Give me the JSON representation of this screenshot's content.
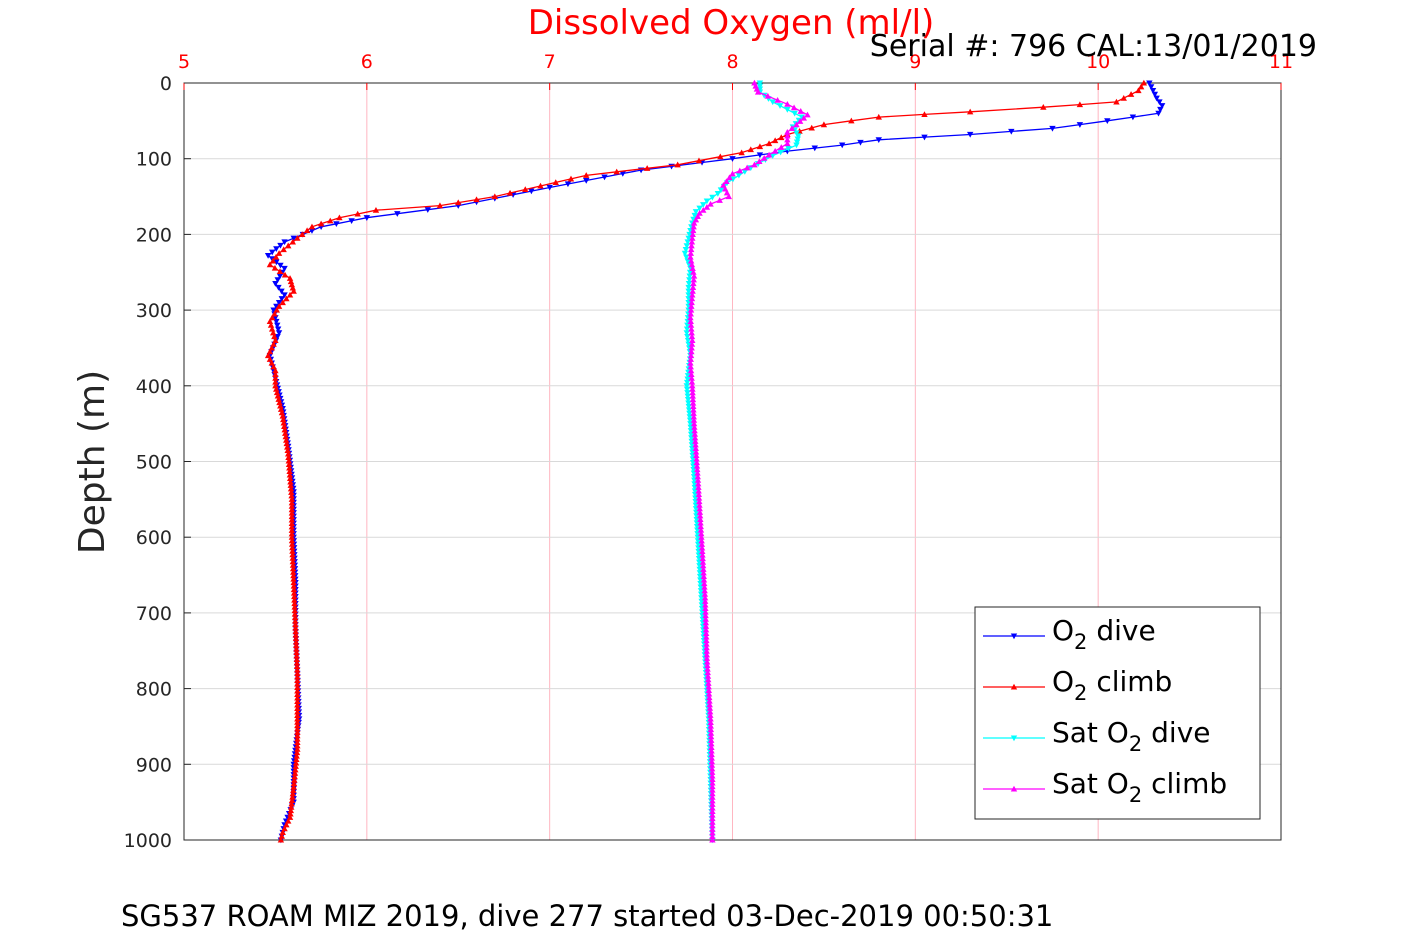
{
  "chart_data": {
    "type": "line",
    "title": "Dissolved Oxygen (ml/l)",
    "title_color": "#ff0000",
    "serial_label": "Serial #: 796  CAL:13/01/2019",
    "caption": "SG537 ROAM MIZ 2019, dive 277 started 03-Dec-2019 00:50:31",
    "ylabel": "Depth (m)",
    "xlim": [
      5,
      11
    ],
    "ylim": [
      0,
      1000
    ],
    "y_reversed": true,
    "x_axis_position": "top",
    "x_tick_color": "#ff0000",
    "x_grid_color": "#ffb6c1",
    "y_grid_color": "#d9d9d9",
    "grid": true,
    "legend_position": "bottom-right",
    "x_ticks": [
      5,
      6,
      7,
      8,
      9,
      10,
      11
    ],
    "y_ticks": [
      0,
      100,
      200,
      300,
      400,
      500,
      600,
      700,
      800,
      900,
      1000
    ],
    "series": [
      {
        "name": "O2 dive",
        "legend": {
          "pre": "O",
          "sub": "2",
          "post": " dive"
        },
        "color": "#0000ff",
        "marker": "triangle-down",
        "points": [
          [
            10.28,
            0
          ],
          [
            10.3,
            10
          ],
          [
            10.32,
            20
          ],
          [
            10.35,
            30
          ],
          [
            10.33,
            40
          ],
          [
            10.05,
            50
          ],
          [
            9.75,
            60
          ],
          [
            9.3,
            68
          ],
          [
            8.8,
            75
          ],
          [
            8.6,
            82
          ],
          [
            8.3,
            90
          ],
          [
            8.0,
            100
          ],
          [
            7.5,
            115
          ],
          [
            7.0,
            138
          ],
          [
            6.5,
            162
          ],
          [
            6.0,
            178
          ],
          [
            5.75,
            190
          ],
          [
            5.55,
            210
          ],
          [
            5.46,
            228
          ],
          [
            5.55,
            245
          ],
          [
            5.5,
            265
          ],
          [
            5.55,
            280
          ],
          [
            5.49,
            300
          ],
          [
            5.52,
            330
          ],
          [
            5.47,
            360
          ],
          [
            5.5,
            390
          ],
          [
            5.54,
            430
          ],
          [
            5.57,
            480
          ],
          [
            5.6,
            540
          ],
          [
            5.6,
            600
          ],
          [
            5.61,
            660
          ],
          [
            5.61,
            720
          ],
          [
            5.62,
            780
          ],
          [
            5.63,
            840
          ],
          [
            5.6,
            900
          ],
          [
            5.6,
            950
          ],
          [
            5.55,
            980
          ],
          [
            5.53,
            1000
          ]
        ]
      },
      {
        "name": "O2 climb",
        "legend": {
          "pre": "O",
          "sub": "2",
          "post": " climb"
        },
        "color": "#ff0000",
        "marker": "triangle-up",
        "points": [
          [
            10.25,
            0
          ],
          [
            10.22,
            10
          ],
          [
            10.1,
            25
          ],
          [
            9.7,
            32
          ],
          [
            9.3,
            38
          ],
          [
            8.8,
            45
          ],
          [
            8.5,
            55
          ],
          [
            8.3,
            68
          ],
          [
            8.2,
            80
          ],
          [
            8.05,
            92
          ],
          [
            7.7,
            108
          ],
          [
            7.2,
            122
          ],
          [
            6.7,
            150
          ],
          [
            6.4,
            162
          ],
          [
            6.05,
            168
          ],
          [
            5.85,
            178
          ],
          [
            5.7,
            190
          ],
          [
            5.62,
            205
          ],
          [
            5.52,
            225
          ],
          [
            5.47,
            240
          ],
          [
            5.58,
            258
          ],
          [
            5.6,
            275
          ],
          [
            5.52,
            295
          ],
          [
            5.47,
            315
          ],
          [
            5.5,
            340
          ],
          [
            5.46,
            360
          ],
          [
            5.5,
            380
          ],
          [
            5.5,
            400
          ],
          [
            5.54,
            440
          ],
          [
            5.57,
            490
          ],
          [
            5.59,
            550
          ],
          [
            5.59,
            600
          ],
          [
            5.6,
            660
          ],
          [
            5.61,
            720
          ],
          [
            5.62,
            780
          ],
          [
            5.62,
            840
          ],
          [
            5.62,
            880
          ],
          [
            5.6,
            930
          ],
          [
            5.58,
            970
          ],
          [
            5.54,
            990
          ],
          [
            5.53,
            1000
          ]
        ]
      },
      {
        "name": "Sat O2 dive",
        "legend": {
          "pre": "Sat O",
          "sub": "2",
          "post": " dive"
        },
        "color": "#00ffff",
        "marker": "triangle-down",
        "points": [
          [
            8.15,
            0
          ],
          [
            8.15,
            12
          ],
          [
            8.22,
            25
          ],
          [
            8.3,
            35
          ],
          [
            8.38,
            45
          ],
          [
            8.33,
            58
          ],
          [
            8.36,
            70
          ],
          [
            8.35,
            82
          ],
          [
            8.22,
            96
          ],
          [
            8.1,
            112
          ],
          [
            7.97,
            132
          ],
          [
            7.92,
            146
          ],
          [
            7.86,
            156
          ],
          [
            7.8,
            170
          ],
          [
            7.78,
            185
          ],
          [
            7.76,
            205
          ],
          [
            7.74,
            225
          ],
          [
            7.77,
            245
          ],
          [
            7.76,
            270
          ],
          [
            7.76,
            300
          ],
          [
            7.75,
            330
          ],
          [
            7.77,
            360
          ],
          [
            7.75,
            400
          ],
          [
            7.77,
            450
          ],
          [
            7.79,
            520
          ],
          [
            7.81,
            600
          ],
          [
            7.83,
            680
          ],
          [
            7.85,
            760
          ],
          [
            7.87,
            840
          ],
          [
            7.88,
            920
          ],
          [
            7.89,
            1000
          ]
        ]
      },
      {
        "name": "Sat O2 climb",
        "legend": {
          "pre": "Sat O",
          "sub": "2",
          "post": " climb"
        },
        "color": "#ff00ff",
        "marker": "triangle-up",
        "points": [
          [
            8.12,
            0
          ],
          [
            8.14,
            12
          ],
          [
            8.3,
            28
          ],
          [
            8.41,
            42
          ],
          [
            8.35,
            55
          ],
          [
            8.3,
            65
          ],
          [
            8.3,
            80
          ],
          [
            8.2,
            95
          ],
          [
            8.12,
            108
          ],
          [
            8.0,
            120
          ],
          [
            7.95,
            135
          ],
          [
            7.98,
            150
          ],
          [
            7.88,
            160
          ],
          [
            7.82,
            172
          ],
          [
            7.79,
            185
          ],
          [
            7.78,
            205
          ],
          [
            7.77,
            230
          ],
          [
            7.79,
            255
          ],
          [
            7.78,
            280
          ],
          [
            7.77,
            310
          ],
          [
            7.78,
            340
          ],
          [
            7.77,
            370
          ],
          [
            7.78,
            400
          ],
          [
            7.79,
            450
          ],
          [
            7.81,
            520
          ],
          [
            7.83,
            600
          ],
          [
            7.85,
            680
          ],
          [
            7.86,
            760
          ],
          [
            7.88,
            840
          ],
          [
            7.89,
            920
          ],
          [
            7.89,
            1000
          ]
        ]
      }
    ]
  }
}
